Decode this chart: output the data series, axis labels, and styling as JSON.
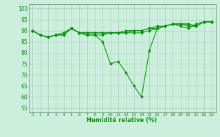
{
  "xlabel": "Humidité relative (%)",
  "background_color": "#cceedd",
  "grid_color": "#aaccbb",
  "line_color": "#009900",
  "xlim": [
    -0.5,
    23.5
  ],
  "ylim": [
    53,
    102
  ],
  "yticks": [
    55,
    60,
    65,
    70,
    75,
    80,
    85,
    90,
    95,
    100
  ],
  "xticks": [
    0,
    1,
    2,
    3,
    4,
    5,
    6,
    7,
    8,
    9,
    10,
    11,
    12,
    13,
    14,
    15,
    16,
    17,
    18,
    19,
    20,
    21,
    22,
    23
  ],
  "series": [
    [
      90,
      88,
      87,
      88,
      88,
      91,
      89,
      88,
      88,
      85,
      75,
      76,
      71,
      65,
      60,
      81,
      91,
      92,
      93,
      92,
      91,
      93,
      94,
      94
    ],
    [
      90,
      88,
      87,
      88,
      88,
      91,
      89,
      88,
      88,
      88,
      89,
      89,
      89,
      89,
      89,
      90,
      91,
      92,
      93,
      93,
      92,
      92,
      94,
      94
    ],
    [
      90,
      88,
      87,
      88,
      89,
      91,
      89,
      89,
      89,
      89,
      89,
      89,
      89,
      90,
      90,
      91,
      91,
      92,
      93,
      93,
      93,
      92,
      94,
      94
    ],
    [
      90,
      88,
      87,
      88,
      89,
      91,
      89,
      89,
      89,
      89,
      89,
      89,
      90,
      90,
      90,
      91,
      92,
      92,
      93,
      93,
      93,
      92,
      94,
      94
    ]
  ]
}
